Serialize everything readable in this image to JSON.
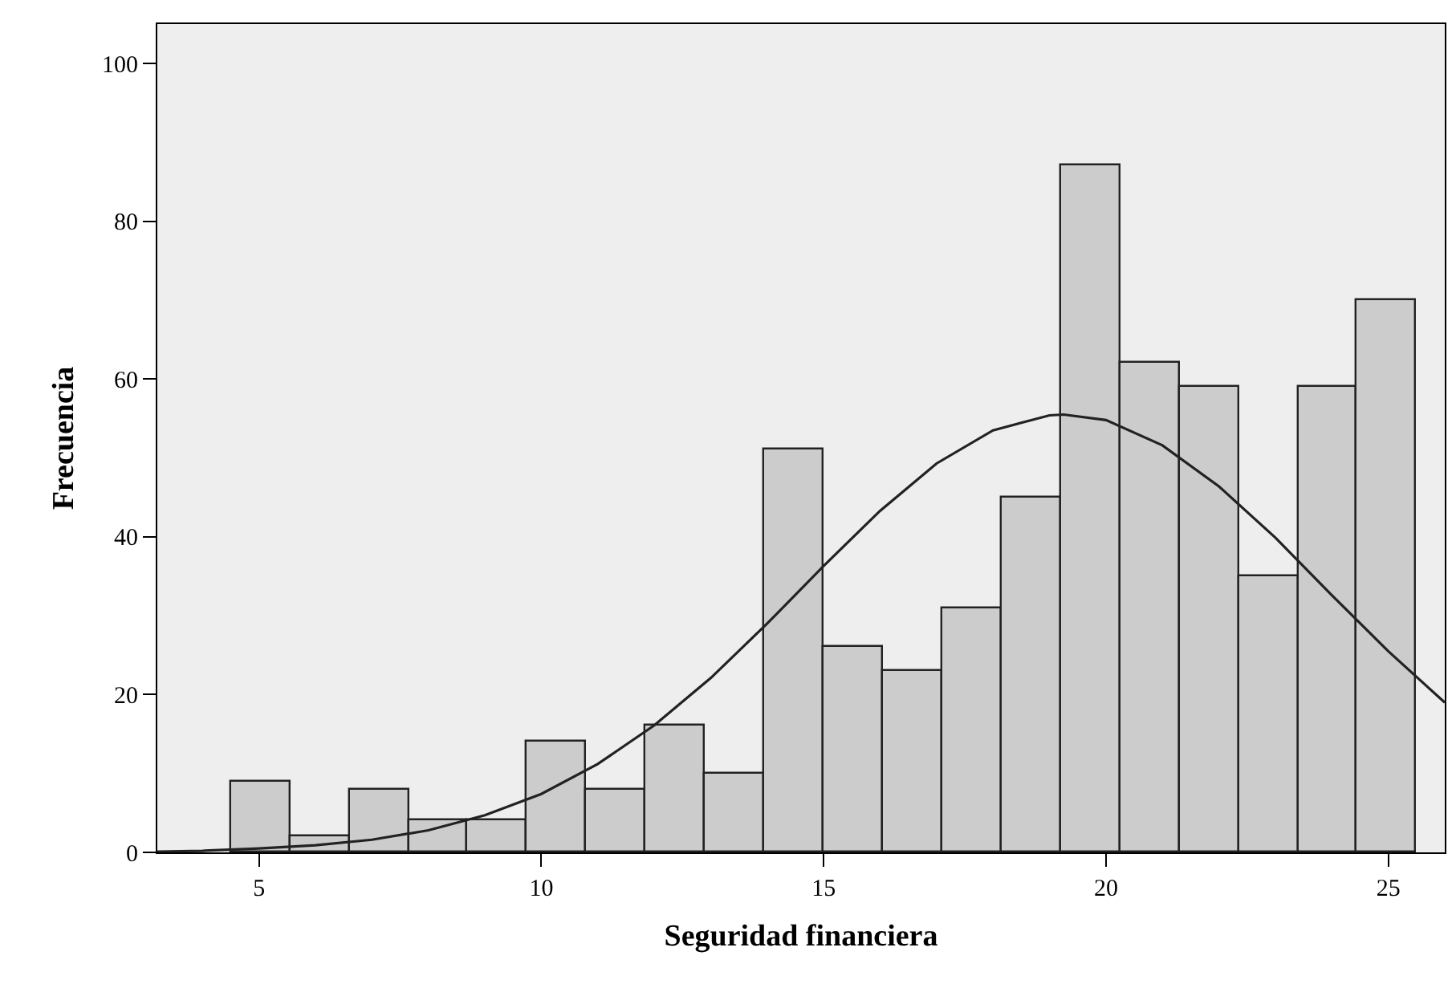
{
  "chart_data": {
    "type": "histogram",
    "xlabel": "Seguridad financiera",
    "ylabel": "Frecuencia",
    "bins": [
      4.5,
      5.55,
      6.6,
      7.65,
      8.7,
      9.75,
      10.8,
      11.85,
      12.9,
      13.95,
      15,
      16.05,
      17.1,
      18.15,
      19.2,
      20.25,
      21.3,
      22.35,
      23.4,
      24.45,
      25.5
    ],
    "series": [
      {
        "color": "#cccccc",
        "values": [
          9,
          2,
          8,
          4,
          4,
          14,
          8,
          16,
          10,
          51,
          26,
          23,
          31,
          45,
          87,
          62,
          59,
          35,
          59,
          70
        ]
      },
      {
        "type": "line",
        "color": "#222222",
        "x": [
          3.2,
          4,
          5,
          6,
          7,
          8,
          9,
          10,
          11,
          12,
          13,
          14,
          15,
          16,
          17,
          18,
          19,
          19.25,
          20,
          21,
          22,
          23,
          24,
          25,
          26
        ],
        "values": [
          0.1,
          0.2,
          0.5,
          0.9,
          1.6,
          2.8,
          4.7,
          7.4,
          11.2,
          16.1,
          22.1,
          29,
          36.3,
          43.3,
          49.3,
          53.5,
          55.4,
          55.5,
          54.8,
          51.6,
          46.4,
          39.9,
          32.6,
          25.5,
          19
        ]
      }
    ],
    "xlim": [
      3.2,
      26
    ],
    "xticks": [
      5,
      10,
      15,
      20,
      25
    ],
    "ylim": [
      0,
      105
    ],
    "yticks": [
      0,
      20,
      40,
      60,
      80,
      100
    ],
    "grid": false,
    "marker": "none",
    "line_style": "solid"
  }
}
